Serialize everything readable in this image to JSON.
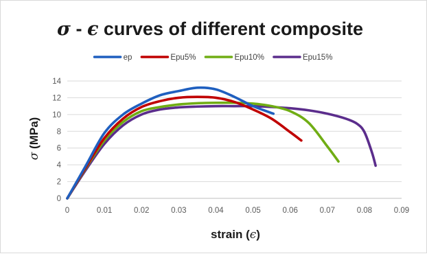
{
  "chart_data": {
    "type": "line",
    "title": "σ - ϵ curves of different composite",
    "xlabel": "strain (ϵ)",
    "ylabel": "σ (MPa)",
    "xlim": [
      0,
      0.09
    ],
    "ylim": [
      0,
      14
    ],
    "x_ticks": [
      "0",
      "0.01",
      "0.02",
      "0.03",
      "0.04",
      "0.05",
      "0.06",
      "0.07",
      "0.08",
      "0.09"
    ],
    "y_ticks": [
      "0",
      "2",
      "4",
      "6",
      "8",
      "10",
      "12",
      "14"
    ],
    "grid": "horizontal",
    "legend_position": "top",
    "series": [
      {
        "name": "ep",
        "color": "#1f5fbf",
        "x": [
          0,
          0.005,
          0.01,
          0.015,
          0.02,
          0.025,
          0.03,
          0.035,
          0.04,
          0.045,
          0.05,
          0.0555
        ],
        "y": [
          0,
          3.9,
          7.8,
          10.0,
          11.3,
          12.3,
          12.8,
          13.2,
          13.0,
          12.1,
          11.0,
          10.1
        ]
      },
      {
        "name": "Epu5%",
        "color": "#c00000",
        "x": [
          0,
          0.005,
          0.01,
          0.015,
          0.02,
          0.025,
          0.03,
          0.035,
          0.04,
          0.045,
          0.05,
          0.055,
          0.06,
          0.063
        ],
        "y": [
          0,
          3.7,
          7.2,
          9.5,
          10.9,
          11.6,
          12.0,
          12.1,
          12.0,
          11.5,
          10.6,
          9.5,
          7.9,
          6.9
        ]
      },
      {
        "name": "Epu10%",
        "color": "#70ad14",
        "x": [
          0,
          0.005,
          0.01,
          0.015,
          0.02,
          0.025,
          0.03,
          0.035,
          0.04,
          0.045,
          0.05,
          0.055,
          0.06,
          0.065,
          0.07,
          0.073
        ],
        "y": [
          0,
          3.6,
          6.9,
          9.1,
          10.4,
          10.9,
          11.2,
          11.35,
          11.4,
          11.4,
          11.3,
          11.0,
          10.4,
          9.0,
          6.2,
          4.4
        ]
      },
      {
        "name": "Epu15%",
        "color": "#5b2d8c",
        "x": [
          0,
          0.005,
          0.01,
          0.015,
          0.02,
          0.025,
          0.03,
          0.035,
          0.04,
          0.045,
          0.05,
          0.055,
          0.06,
          0.065,
          0.07,
          0.075,
          0.078,
          0.08,
          0.082,
          0.083
        ],
        "y": [
          0,
          3.4,
          6.5,
          8.7,
          10.0,
          10.6,
          10.85,
          10.95,
          11.0,
          11.0,
          11.0,
          10.9,
          10.75,
          10.5,
          10.1,
          9.5,
          8.9,
          7.9,
          5.5,
          3.9
        ]
      }
    ]
  }
}
